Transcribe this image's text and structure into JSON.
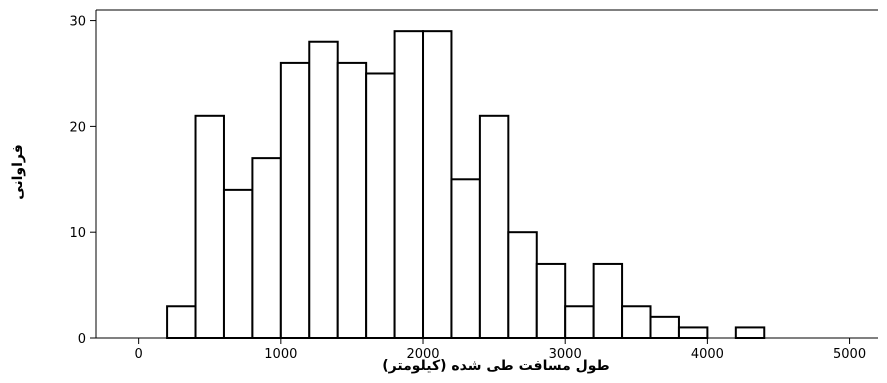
{
  "chart_data": {
    "type": "bar",
    "bin_width": 200,
    "bins": [
      {
        "start": 200,
        "end": 400,
        "value": 3
      },
      {
        "start": 400,
        "end": 600,
        "value": 21
      },
      {
        "start": 600,
        "end": 800,
        "value": 14
      },
      {
        "start": 800,
        "end": 1000,
        "value": 17
      },
      {
        "start": 1000,
        "end": 1200,
        "value": 26
      },
      {
        "start": 1200,
        "end": 1400,
        "value": 28
      },
      {
        "start": 1400,
        "end": 1600,
        "value": 26
      },
      {
        "start": 1600,
        "end": 1800,
        "value": 25
      },
      {
        "start": 1800,
        "end": 2000,
        "value": 29
      },
      {
        "start": 2000,
        "end": 2200,
        "value": 29
      },
      {
        "start": 2200,
        "end": 2400,
        "value": 15
      },
      {
        "start": 2400,
        "end": 2600,
        "value": 21
      },
      {
        "start": 2600,
        "end": 2800,
        "value": 10
      },
      {
        "start": 2800,
        "end": 3000,
        "value": 7
      },
      {
        "start": 3000,
        "end": 3200,
        "value": 3
      },
      {
        "start": 3200,
        "end": 3400,
        "value": 7
      },
      {
        "start": 3400,
        "end": 3600,
        "value": 3
      },
      {
        "start": 3600,
        "end": 3800,
        "value": 2
      },
      {
        "start": 3800,
        "end": 4000,
        "value": 1
      },
      {
        "start": 4200,
        "end": 4400,
        "value": 1
      }
    ],
    "title": "",
    "xlabel": "طول مسافت طی شده (کیلومتر)",
    "ylabel": "فراوانی",
    "xlim": [
      -300,
      5200
    ],
    "ylim": [
      0,
      31
    ],
    "xticks": [
      0,
      1000,
      2000,
      3000,
      4000,
      5000
    ],
    "yticks": [
      0,
      10,
      20,
      30
    ],
    "xtick_labels": [
      "0",
      "1000",
      "2000",
      "3000",
      "4000",
      "5000"
    ],
    "ytick_labels": [
      "0",
      "10",
      "20",
      "30"
    ],
    "grid": false,
    "colors": {
      "bar_fill": "#ffffff",
      "bar_stroke": "#000000"
    }
  }
}
